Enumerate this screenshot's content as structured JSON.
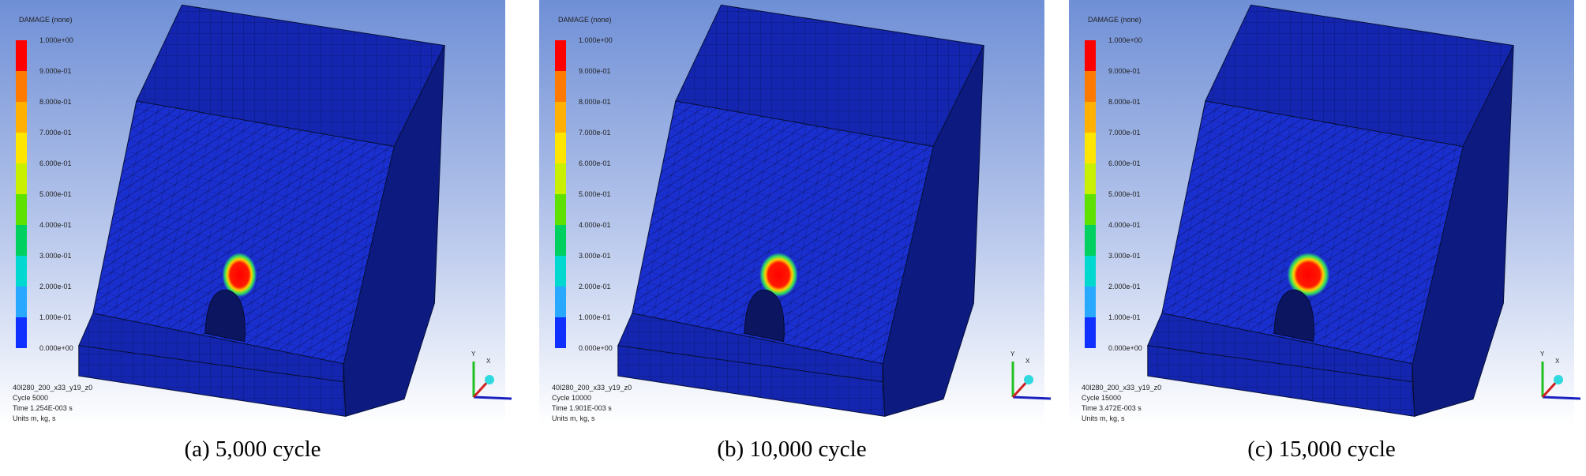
{
  "panels": [
    {
      "legend_title": "DAMAGE (none)",
      "legend_labels": [
        "1.000e+00",
        "9.000e-01",
        "8.000e-01",
        "7.000e-01",
        "6.000e-01",
        "5.000e-01",
        "4.000e-01",
        "3.000e-01",
        "2.000e-01",
        "1.000e-01",
        "0.000e+00"
      ],
      "info": [
        "40I280_200_x33_y19_z0",
        "Cycle 5000",
        "Time 1.254E-003 s",
        "Units m, kg, s"
      ],
      "triad": {
        "y": "Y",
        "x": "X"
      },
      "caption": "(a) 5,000 cycle"
    },
    {
      "legend_title": "DAMAGE (none)",
      "legend_labels": [
        "1.000e+00",
        "9.000e-01",
        "8.000e-01",
        "7.000e-01",
        "6.000e-01",
        "5.000e-01",
        "4.000e-01",
        "3.000e-01",
        "2.000e-01",
        "1.000e-01",
        "0.000e+00"
      ],
      "info": [
        "40I280_200_x33_y19_z0",
        "Cycle 10000",
        "Time 1.901E-003 s",
        "Units m, kg, s"
      ],
      "triad": {
        "y": "Y",
        "x": "X"
      },
      "caption": "(b) 10,000 cycle"
    },
    {
      "legend_title": "DAMAGE (none)",
      "legend_labels": [
        "1.000e+00",
        "9.000e-01",
        "8.000e-01",
        "7.000e-01",
        "6.000e-01",
        "5.000e-01",
        "4.000e-01",
        "3.000e-01",
        "2.000e-01",
        "1.000e-01",
        "0.000e+00"
      ],
      "info": [
        "40I280_200_x33_y19_z0",
        "Cycle 15000",
        "Time 3.472E-003 s",
        "Units m, kg, s"
      ],
      "triad": {
        "y": "Y",
        "x": "X"
      },
      "caption": "(c) 15,000 cycle"
    }
  ]
}
